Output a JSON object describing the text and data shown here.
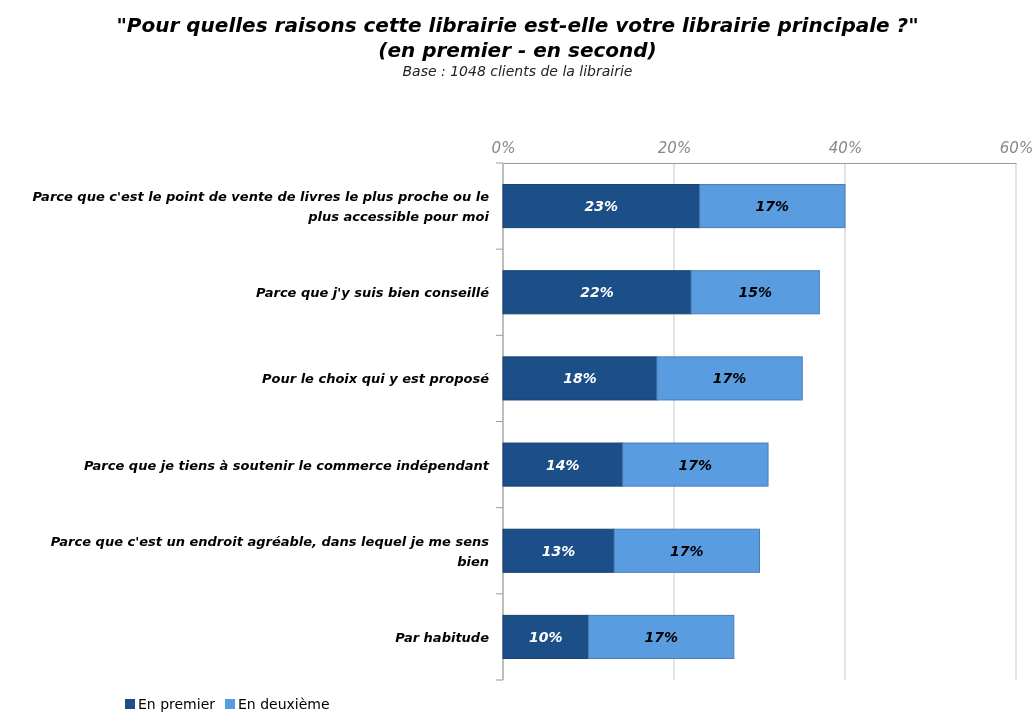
{
  "chart_data": {
    "type": "bar",
    "orientation": "horizontal",
    "stacked": true,
    "title": "\"Pour quelles raisons cette librairie est-elle votre librairie principale ?\" (en premier - en second)",
    "subtitle": "Base : 1048 clients de la librairie",
    "categories": [
      "Parce que c'est le point de vente de livres le plus proche ou le plus accessible pour moi",
      "Parce que j'y suis bien conseillé",
      "Pour le choix qui y est proposé",
      "Parce que je tiens à soutenir le commerce indépendant",
      "Parce que c'est un endroit agréable, dans lequel je me sens bien",
      "Par habitude"
    ],
    "series": [
      {
        "name": "En premier",
        "color": "#1c4f88",
        "values": [
          23,
          22,
          18,
          14,
          13,
          10
        ],
        "value_labels": [
          "23%",
          "22%",
          "18%",
          "14%",
          "13%",
          "10%"
        ]
      },
      {
        "name": "En deuxième",
        "color": "#5a9ce0",
        "values": [
          17,
          15,
          17,
          17,
          17,
          17
        ],
        "value_labels": [
          "17%",
          "15%",
          "17%",
          "17%",
          "17%",
          "17%"
        ]
      }
    ],
    "xlim": [
      0,
      60
    ],
    "xticks": [
      {
        "value": 0,
        "label": "0%"
      },
      {
        "value": 20,
        "label": "20%"
      },
      {
        "value": 40,
        "label": "40%"
      },
      {
        "value": 60,
        "label": "60%"
      }
    ],
    "grid": "x",
    "legend": "bottom left"
  }
}
